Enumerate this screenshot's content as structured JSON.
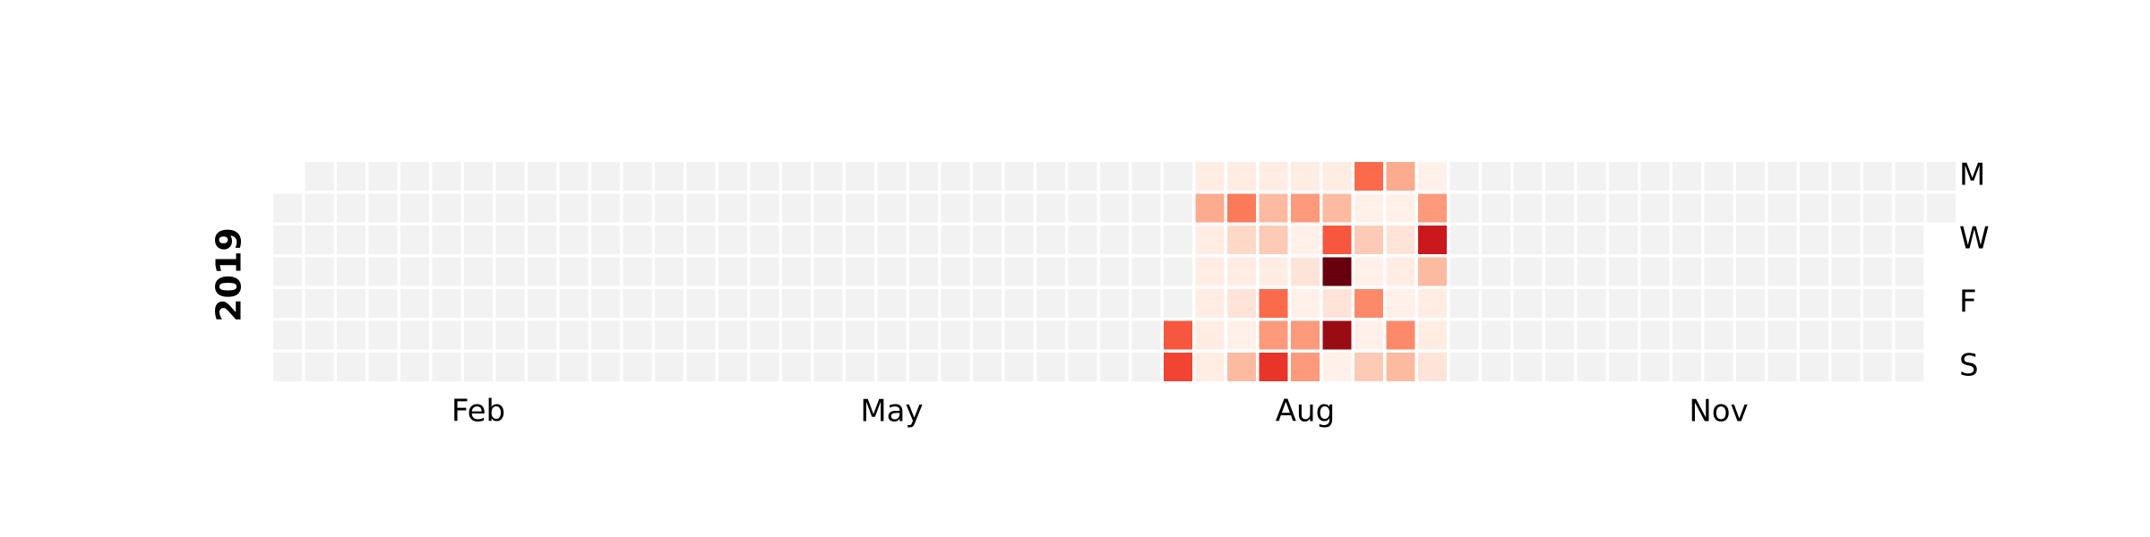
{
  "chart_data": {
    "type": "calendar-heatmap",
    "year": "2019",
    "colormap": "Reds",
    "empty_color": "#f2f2f2",
    "xticks": [
      {
        "value": 2,
        "label": "Feb"
      },
      {
        "value": 5,
        "label": "May"
      },
      {
        "value": 8,
        "label": "Aug"
      },
      {
        "value": 11,
        "label": "Nov"
      }
    ],
    "yticks": [
      {
        "value": 0,
        "label": "M"
      },
      {
        "value": 2,
        "label": "W"
      },
      {
        "value": 4,
        "label": "F"
      },
      {
        "value": 6,
        "label": "S"
      }
    ],
    "values": [
      [
        null,
        null,
        null,
        null,
        null,
        null,
        null
      ],
      [
        null,
        null,
        null,
        null,
        null,
        null,
        null
      ],
      [
        null,
        null,
        null,
        null,
        null,
        null,
        null
      ],
      [
        null,
        null,
        null,
        null,
        null,
        null,
        null
      ],
      [
        null,
        null,
        null,
        null,
        null,
        null,
        null
      ],
      [
        null,
        null,
        null,
        null,
        null,
        null,
        null
      ],
      [
        null,
        null,
        null,
        null,
        null,
        null,
        null
      ],
      [
        null,
        null,
        null,
        null,
        null,
        null,
        null
      ],
      [
        null,
        null,
        null,
        null,
        null,
        null,
        null
      ],
      [
        null,
        null,
        null,
        null,
        null,
        null,
        null
      ],
      [
        null,
        null,
        null,
        null,
        null,
        null,
        null
      ],
      [
        null,
        null,
        null,
        null,
        null,
        null,
        null
      ],
      [
        null,
        null,
        null,
        null,
        null,
        null,
        null
      ],
      [
        null,
        null,
        null,
        null,
        null,
        null,
        null
      ],
      [
        null,
        null,
        null,
        null,
        null,
        null,
        null
      ],
      [
        null,
        null,
        null,
        null,
        null,
        null,
        null
      ],
      [
        null,
        null,
        null,
        null,
        null,
        null,
        null
      ],
      [
        null,
        null,
        null,
        null,
        null,
        null,
        null
      ],
      [
        null,
        null,
        null,
        null,
        null,
        null,
        null
      ],
      [
        null,
        null,
        null,
        null,
        null,
        null,
        null
      ],
      [
        null,
        null,
        null,
        null,
        null,
        null,
        null
      ],
      [
        null,
        null,
        null,
        null,
        null,
        null,
        null
      ],
      [
        null,
        null,
        null,
        null,
        null,
        null,
        null
      ],
      [
        null,
        null,
        null,
        null,
        null,
        null,
        null
      ],
      [
        null,
        null,
        null,
        null,
        null,
        null,
        null
      ],
      [
        null,
        null,
        null,
        null,
        null,
        null,
        null
      ],
      [
        null,
        null,
        null,
        null,
        null,
        null,
        null
      ],
      [
        null,
        null,
        null,
        null,
        null,
        null,
        null
      ],
      [
        null,
        null,
        null,
        null,
        null,
        0.55,
        0.6
      ],
      [
        0.05,
        0.3,
        0.05,
        0.05,
        0.05,
        0.05,
        0.05
      ],
      [
        0.05,
        0.45,
        0.15,
        0.05,
        0.1,
        0.03,
        0.25
      ],
      [
        0.05,
        0.25,
        0.2,
        0.05,
        0.5,
        0.35,
        0.65
      ],
      [
        0.05,
        0.35,
        0.03,
        0.1,
        0.03,
        0.35,
        0.35
      ],
      [
        0.05,
        0.25,
        0.55,
        1.0,
        0.1,
        0.9,
        0.03
      ],
      [
        0.5,
        0.03,
        0.2,
        0.03,
        0.4,
        0.03,
        0.2
      ],
      [
        0.3,
        0.03,
        0.1,
        0.05,
        0.03,
        0.4,
        0.25
      ],
      [
        0.03,
        0.35,
        0.75,
        0.25,
        0.05,
        0.05,
        0.1
      ],
      [
        null,
        null,
        null,
        null,
        null,
        null,
        null
      ],
      [
        null,
        null,
        null,
        null,
        null,
        null,
        null
      ],
      [
        null,
        null,
        null,
        null,
        null,
        null,
        null
      ],
      [
        null,
        null,
        null,
        null,
        null,
        null,
        null
      ],
      [
        null,
        null,
        null,
        null,
        null,
        null,
        null
      ],
      [
        null,
        null,
        null,
        null,
        null,
        null,
        null
      ],
      [
        null,
        null,
        null,
        null,
        null,
        null,
        null
      ],
      [
        null,
        null,
        null,
        null,
        null,
        null,
        null
      ],
      [
        null,
        null,
        null,
        null,
        null,
        null,
        null
      ],
      [
        null,
        null,
        null,
        null,
        null,
        null,
        null
      ],
      [
        null,
        null,
        null,
        null,
        null,
        null,
        null
      ],
      [
        null,
        null,
        null,
        null,
        null,
        null,
        null
      ],
      [
        null,
        null,
        null,
        null,
        null,
        null,
        null
      ],
      [
        null,
        null,
        null,
        null,
        null,
        null,
        null
      ],
      [
        null,
        null,
        null,
        null,
        null,
        null,
        null
      ],
      [
        null,
        null,
        null,
        null,
        null,
        null,
        null
      ]
    ]
  }
}
